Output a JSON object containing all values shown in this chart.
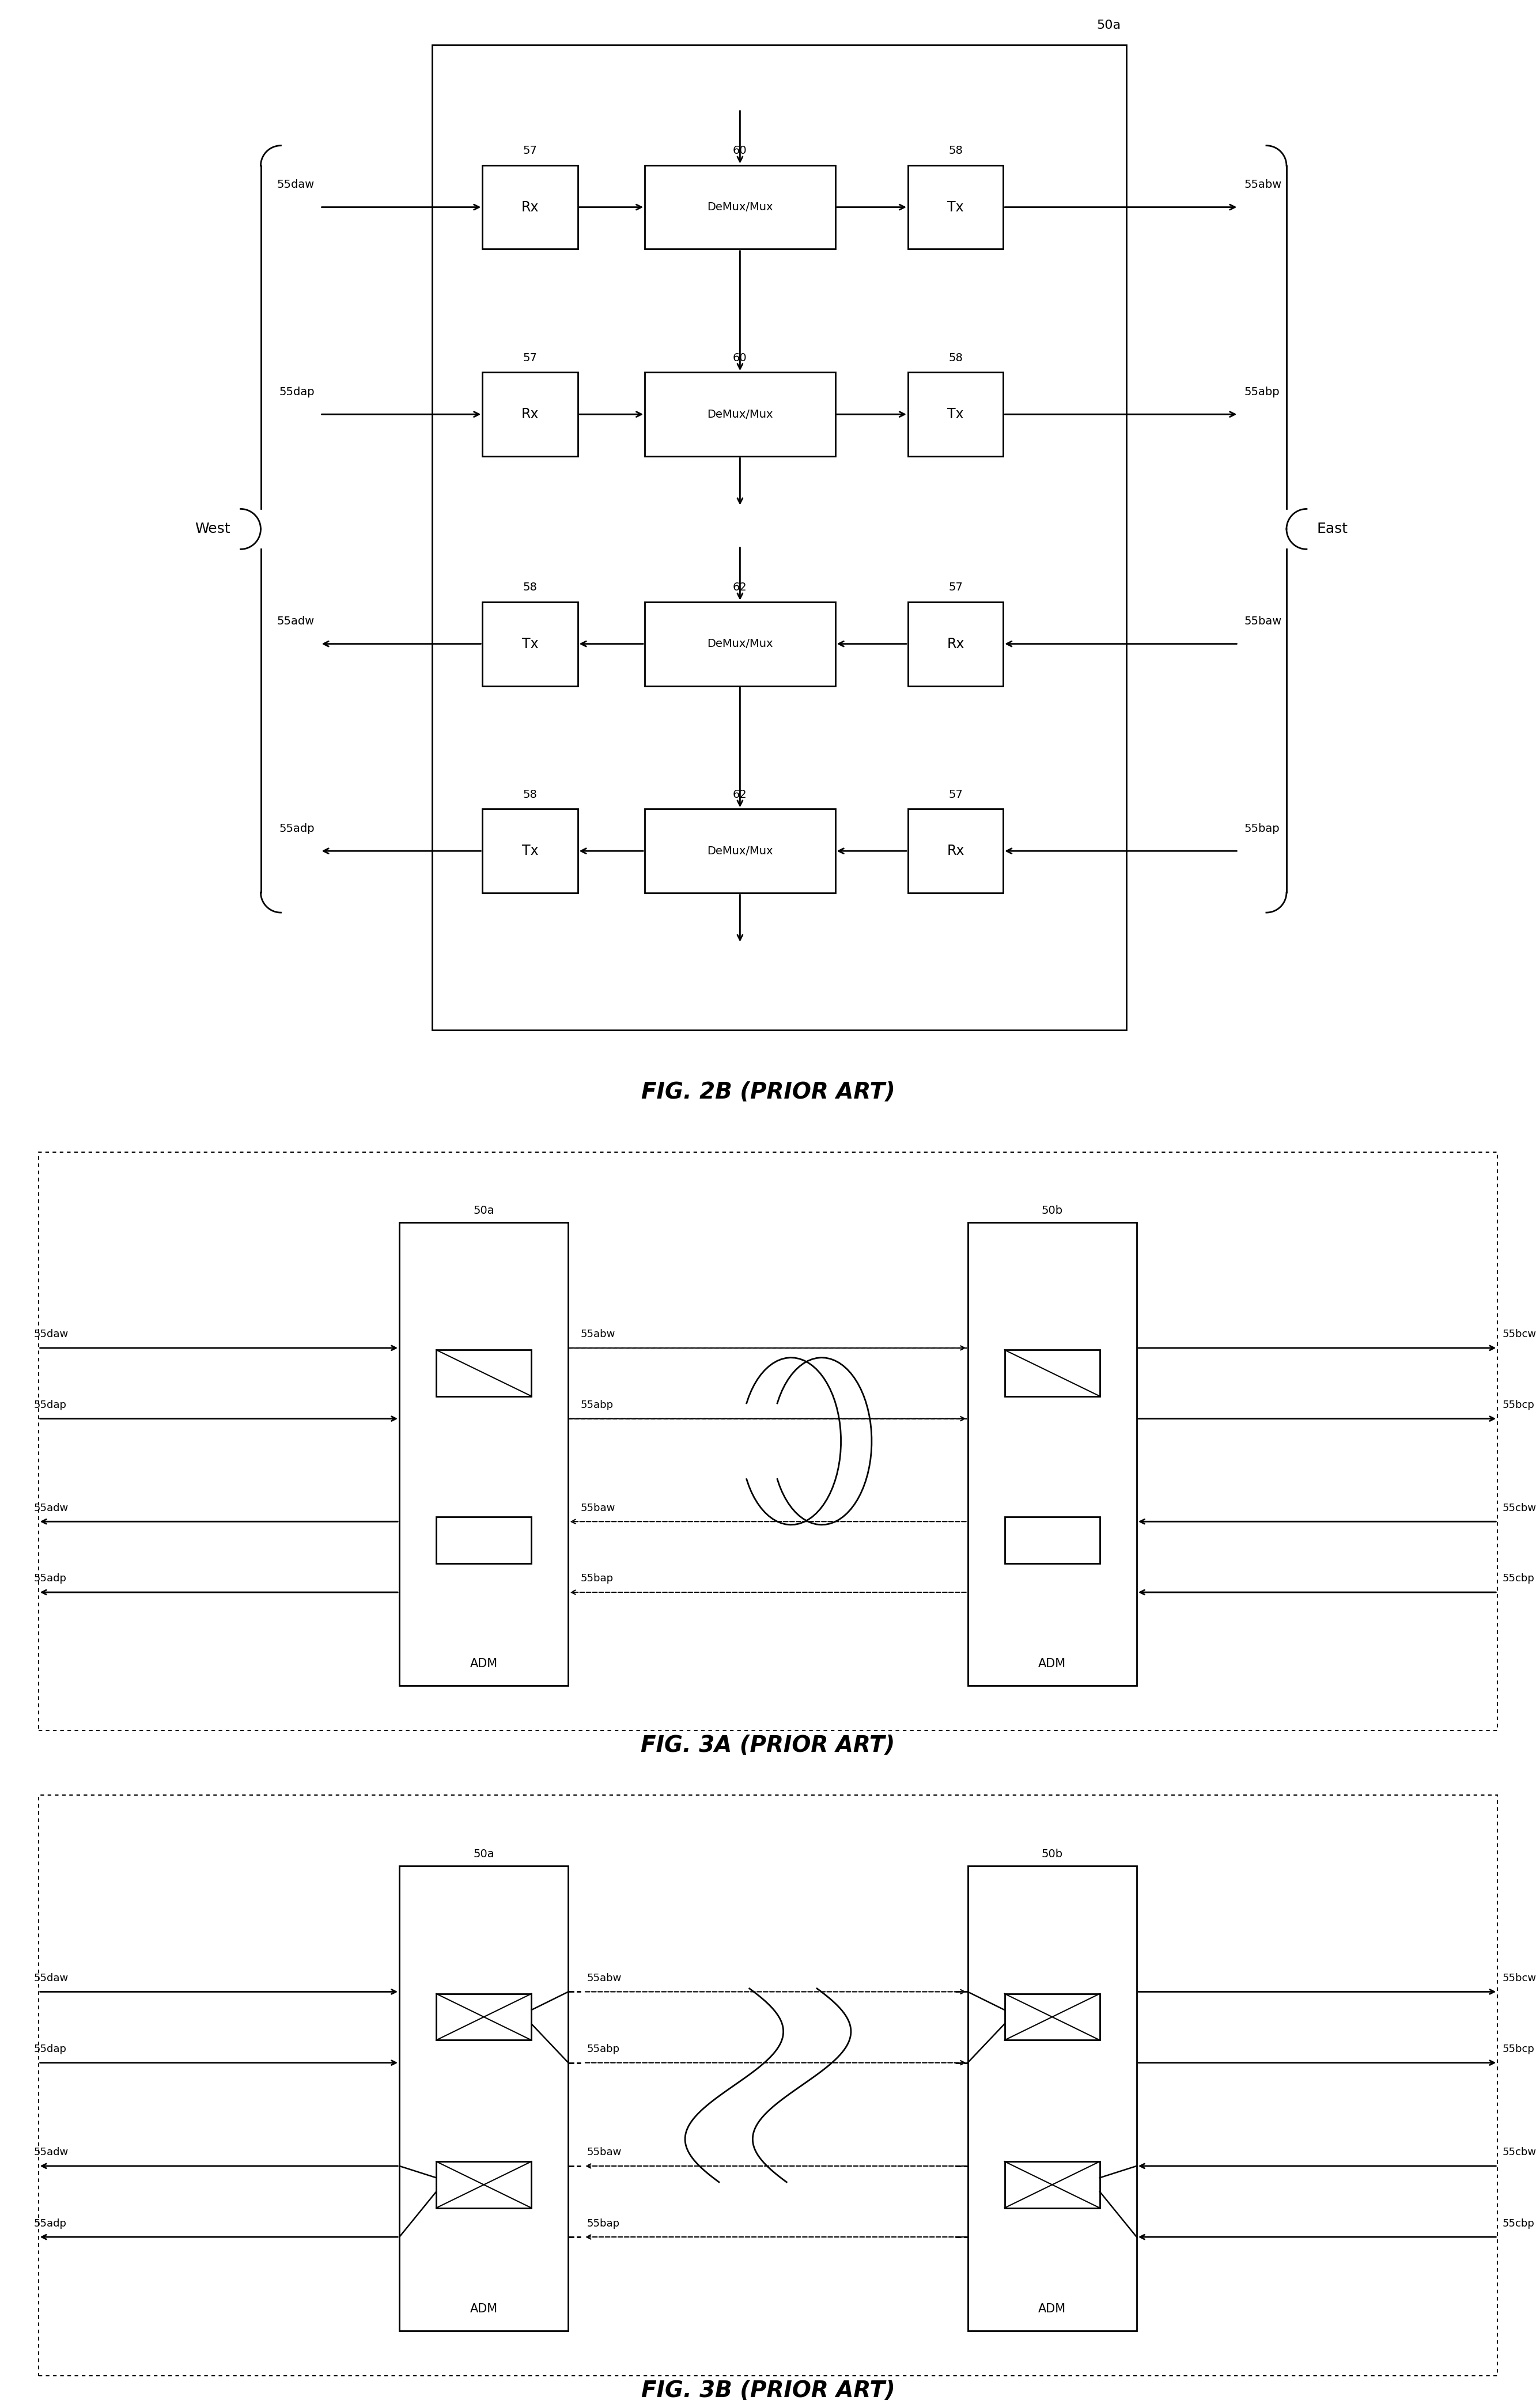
{
  "fig_width": 26.66,
  "fig_height": 41.8,
  "bg_color": "#ffffff",
  "line_color": "#000000",
  "fig2b_rows": [
    {
      "rx_label": "57",
      "rx_text": "Rx",
      "dmux_label": "60",
      "dmux_text": "DeMux/Mux",
      "tx_label": "58",
      "tx_text": "Tx",
      "in_label": "55daw",
      "out_label": "55abw",
      "direction": "right"
    },
    {
      "rx_label": "57",
      "rx_text": "Rx",
      "dmux_label": "60",
      "dmux_text": "DeMux/Mux",
      "tx_label": "58",
      "tx_text": "Tx",
      "in_label": "55dap",
      "out_label": "55abp",
      "direction": "right"
    },
    {
      "rx_label": "58",
      "rx_text": "Tx",
      "dmux_label": "62",
      "dmux_text": "DeMux/Mux",
      "tx_label": "57",
      "tx_text": "Rx",
      "in_label": "55adw",
      "out_label": "55baw",
      "direction": "left"
    },
    {
      "rx_label": "58",
      "rx_text": "Tx",
      "dmux_label": "62",
      "dmux_text": "DeMux/Mux",
      "tx_label": "57",
      "tx_text": "Rx",
      "in_label": "55adp",
      "out_label": "55bap",
      "direction": "left"
    }
  ],
  "fig3a_labels_left": [
    "55daw",
    "55dap",
    "55adw",
    "55adp"
  ],
  "fig3a_labels_mid": [
    "55abw",
    "55abp",
    "55baw",
    "55bap"
  ],
  "fig3a_labels_right": [
    "55bcw",
    "55bcp",
    "55cbw",
    "55cbp"
  ],
  "fig3b_labels_left": [
    "55daw",
    "55dap",
    "55adw",
    "55adp"
  ],
  "fig3b_labels_mid": [
    "55abw",
    "55abp",
    "55baw",
    "55bap"
  ],
  "fig3b_labels_right": [
    "55bcw",
    "55bcp",
    "55cbw",
    "55cbp"
  ]
}
